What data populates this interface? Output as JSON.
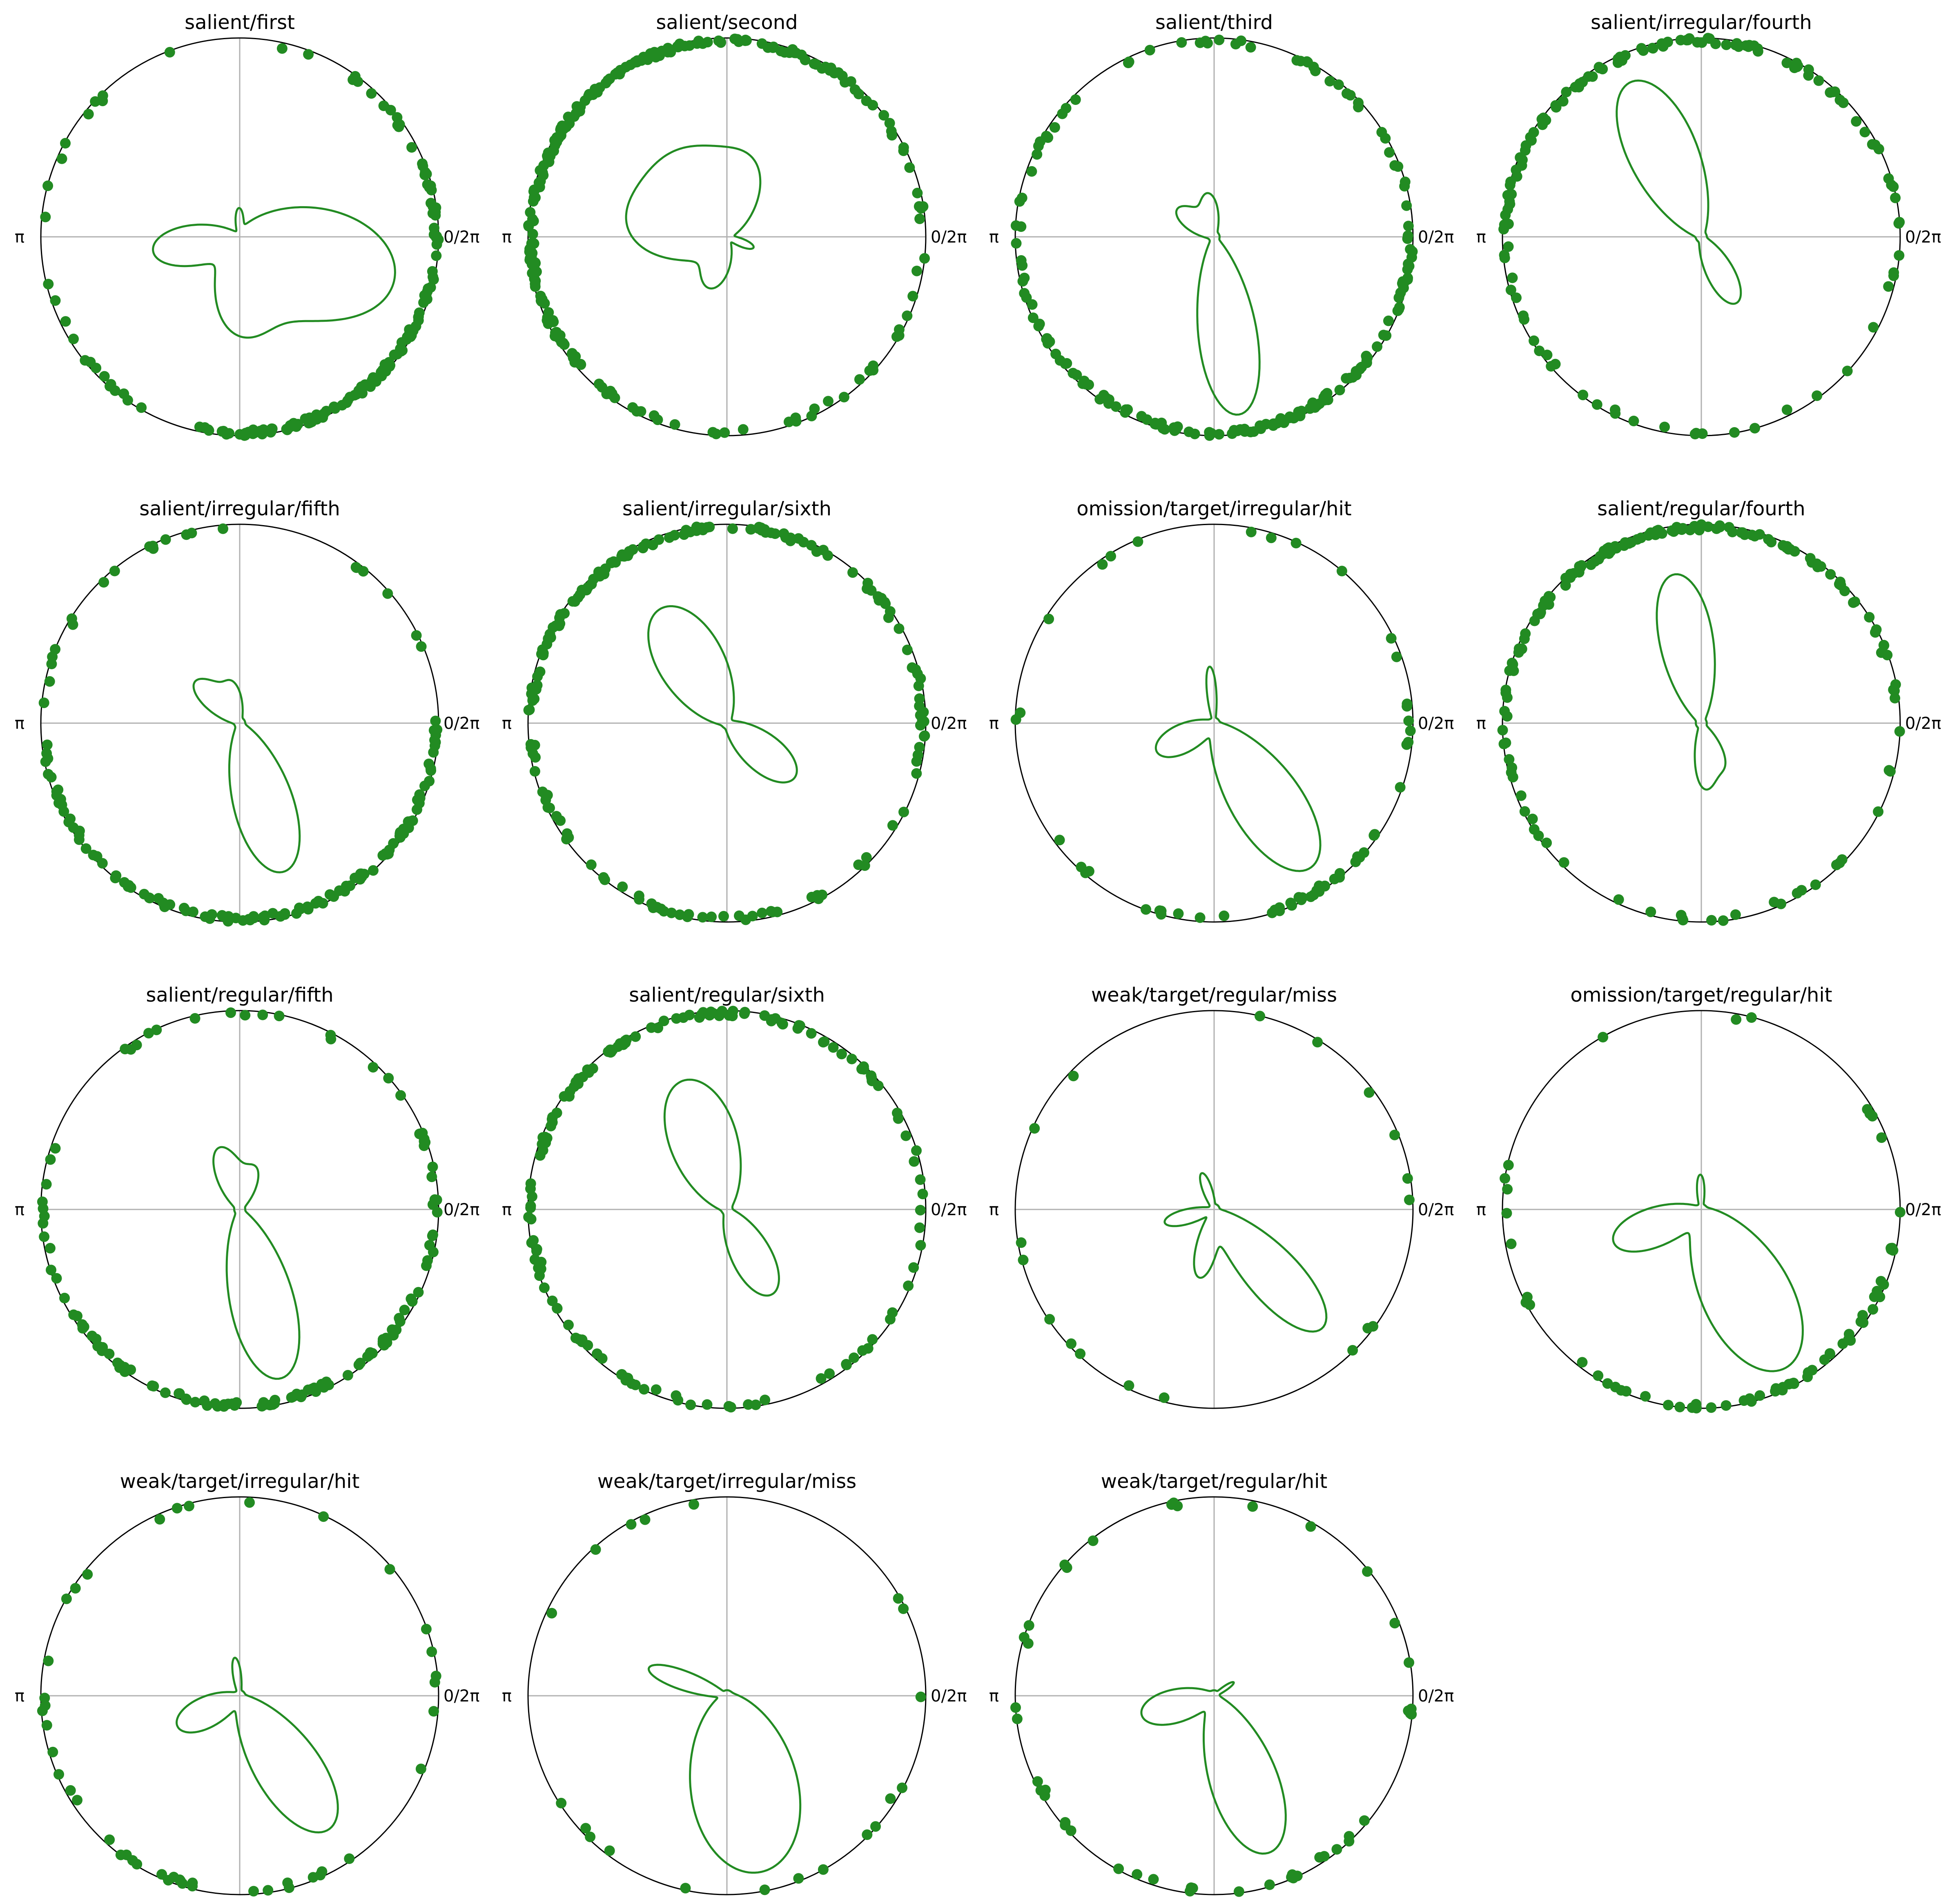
{
  "figure": {
    "theme": {
      "marker_color": "#228B22",
      "curve_color": "#228B22",
      "axis_color": "#000000",
      "grid_color": "#b0b0b0"
    },
    "tick_labels": {
      "zero": "0/2π",
      "pi": "π"
    }
  },
  "chart_data": [
    {
      "type": "scatter",
      "projection": "polar",
      "title": "salient/first",
      "grid": true,
      "dot_count": 160,
      "dot_mu": 5.5,
      "dot_kappa": 1.4,
      "density_peaks": [
        {
          "angle": 6.0,
          "amp": 0.85,
          "kappa": 3.5
        },
        {
          "angle": 4.7,
          "amp": 0.45,
          "kappa": 6
        },
        {
          "angle": 3.3,
          "amp": 0.45,
          "kappa": 8
        },
        {
          "angle": 1.6,
          "amp": 0.12,
          "kappa": 30
        }
      ]
    },
    {
      "type": "scatter",
      "projection": "polar",
      "title": "salient/second",
      "grid": true,
      "dot_count": 240,
      "dot_mu": 2.6,
      "dot_kappa": 0.9,
      "density_peaks": [
        {
          "angle": 2.1,
          "amp": 0.55,
          "kappa": 3
        },
        {
          "angle": 3.1,
          "amp": 0.45,
          "kappa": 5
        },
        {
          "angle": 4.4,
          "amp": 0.3,
          "kappa": 8
        },
        {
          "angle": 5.9,
          "amp": 0.15,
          "kappa": 25
        },
        {
          "angle": 1.2,
          "amp": 0.3,
          "kappa": 8
        }
      ]
    },
    {
      "type": "scatter",
      "projection": "polar",
      "title": "salient/third",
      "grid": true,
      "dot_count": 180,
      "dot_mu": 5.0,
      "dot_kappa": 0.9,
      "density_peaks": [
        {
          "angle": 4.85,
          "amp": 0.95,
          "kappa": 14
        },
        {
          "angle": 2.5,
          "amp": 0.22,
          "kappa": 10
        },
        {
          "angle": 1.7,
          "amp": 0.2,
          "kappa": 15
        }
      ]
    },
    {
      "type": "scatter",
      "projection": "polar",
      "title": "salient/irregular/fourth",
      "grid": true,
      "dot_count": 130,
      "dot_mu": 2.2,
      "dot_kappa": 0.7,
      "density_peaks": [
        {
          "angle": 2.0,
          "amp": 0.9,
          "kappa": 9
        },
        {
          "angle": 5.2,
          "amp": 0.38,
          "kappa": 12
        }
      ]
    },
    {
      "type": "scatter",
      "projection": "polar",
      "title": "salient/irregular/fifth",
      "grid": true,
      "dot_count": 140,
      "dot_mu": 4.9,
      "dot_kappa": 0.9,
      "density_peaks": [
        {
          "angle": 5.0,
          "amp": 0.82,
          "kappa": 10
        },
        {
          "angle": 2.4,
          "amp": 0.3,
          "kappa": 12
        },
        {
          "angle": 1.75,
          "amp": 0.18,
          "kappa": 18
        }
      ]
    },
    {
      "type": "scatter",
      "projection": "polar",
      "title": "salient/irregular/sixth",
      "grid": true,
      "dot_count": 180,
      "dot_mu": 2.3,
      "dot_kappa": 0.6,
      "density_peaks": [
        {
          "angle": 2.1,
          "amp": 0.7,
          "kappa": 6
        },
        {
          "angle": 5.6,
          "amp": 0.45,
          "kappa": 8
        }
      ]
    },
    {
      "type": "scatter",
      "projection": "polar",
      "title": "omission/target/irregular/hit",
      "grid": true,
      "dot_count": 55,
      "dot_mu": 5.2,
      "dot_kappa": 1.0,
      "density_peaks": [
        {
          "angle": 5.3,
          "amp": 0.92,
          "kappa": 9
        },
        {
          "angle": 3.6,
          "amp": 0.32,
          "kappa": 8
        },
        {
          "angle": 1.65,
          "amp": 0.28,
          "kappa": 60
        }
      ]
    },
    {
      "type": "scatter",
      "projection": "polar",
      "title": "salient/regular/fourth",
      "grid": true,
      "dot_count": 150,
      "dot_mu": 1.9,
      "dot_kappa": 0.7,
      "density_peaks": [
        {
          "angle": 1.75,
          "amp": 0.8,
          "kappa": 12
        },
        {
          "angle": 5.2,
          "amp": 0.22,
          "kappa": 20
        },
        {
          "angle": 4.75,
          "amp": 0.3,
          "kappa": 25
        }
      ]
    },
    {
      "type": "scatter",
      "projection": "polar",
      "title": "salient/regular/fifth",
      "grid": true,
      "dot_count": 130,
      "dot_mu": 4.9,
      "dot_kappa": 0.9,
      "density_peaks": [
        {
          "angle": 4.95,
          "amp": 0.92,
          "kappa": 11
        },
        {
          "angle": 1.9,
          "amp": 0.32,
          "kappa": 12
        },
        {
          "angle": 1.2,
          "amp": 0.2,
          "kappa": 15
        }
      ]
    },
    {
      "type": "scatter",
      "projection": "polar",
      "title": "salient/regular/sixth",
      "grid": true,
      "dot_count": 150,
      "dot_mu": 2.2,
      "dot_kappa": 0.6,
      "density_peaks": [
        {
          "angle": 1.9,
          "amp": 0.72,
          "kappa": 6
        },
        {
          "angle": 5.2,
          "amp": 0.5,
          "kappa": 9
        }
      ]
    },
    {
      "type": "scatter",
      "projection": "polar",
      "title": "weak/target/regular/miss",
      "grid": true,
      "dot_count": 18,
      "dot_mu": 4.6,
      "dot_kappa": 0.3,
      "density_peaks": [
        {
          "angle": 5.45,
          "amp": 0.85,
          "kappa": 14
        },
        {
          "angle": 4.5,
          "amp": 0.35,
          "kappa": 20
        },
        {
          "angle": 3.4,
          "amp": 0.25,
          "kappa": 20
        },
        {
          "angle": 1.9,
          "amp": 0.18,
          "kappa": 30
        }
      ]
    },
    {
      "type": "scatter",
      "projection": "polar",
      "title": "omission/target/regular/hit",
      "grid": true,
      "dot_count": 65,
      "dot_mu": 4.9,
      "dot_kappa": 0.9,
      "density_peaks": [
        {
          "angle": 5.2,
          "amp": 0.95,
          "kappa": 6
        },
        {
          "angle": 3.5,
          "amp": 0.48,
          "kappa": 9
        },
        {
          "angle": 1.6,
          "amp": 0.16,
          "kappa": 40
        }
      ]
    },
    {
      "type": "scatter",
      "projection": "polar",
      "title": "weak/target/irregular/hit",
      "grid": true,
      "dot_count": 45,
      "dot_mu": 4.6,
      "dot_kappa": 0.4,
      "density_peaks": [
        {
          "angle": 5.3,
          "amp": 0.85,
          "kappa": 9
        },
        {
          "angle": 3.6,
          "amp": 0.35,
          "kappa": 8
        },
        {
          "angle": 1.7,
          "amp": 0.18,
          "kappa": 40
        }
      ]
    },
    {
      "type": "scatter",
      "projection": "polar",
      "title": "weak/target/irregular/miss",
      "grid": true,
      "dot_count": 20,
      "dot_mu": 4.8,
      "dot_kappa": 0.4,
      "density_peaks": [
        {
          "angle": 4.9,
          "amp": 0.95,
          "kappa": 4
        },
        {
          "angle": 2.8,
          "amp": 0.42,
          "kappa": 30
        }
      ]
    },
    {
      "type": "scatter",
      "projection": "polar",
      "title": "weak/target/regular/hit",
      "grid": true,
      "dot_count": 45,
      "dot_mu": 4.6,
      "dot_kappa": 0.5,
      "density_peaks": [
        {
          "angle": 5.05,
          "amp": 0.88,
          "kappa": 9
        },
        {
          "angle": 3.4,
          "amp": 0.38,
          "kappa": 8
        },
        {
          "angle": 0.6,
          "amp": 0.1,
          "kappa": 60
        }
      ]
    }
  ]
}
